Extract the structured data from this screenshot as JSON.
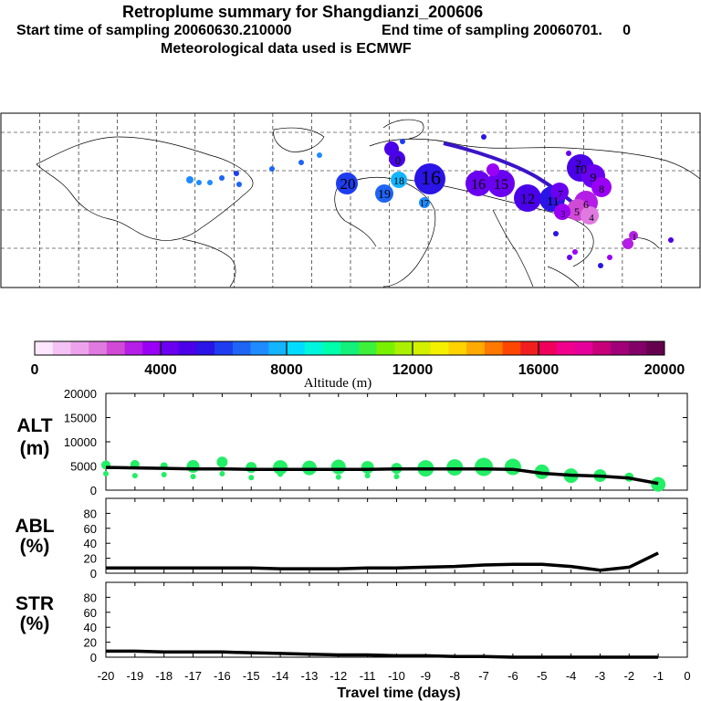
{
  "header": {
    "title": "Retroplume summary for Shangdianzi_200606",
    "start": "Start time of sampling 20060630.210000",
    "end": "End time of sampling 20060701.     0",
    "met": "Meteorological data used is ECMWF"
  },
  "colors": {
    "scale": [
      "#ffe6ff",
      "#f5c2f5",
      "#eca3ec",
      "#e07ae0",
      "#d04ad6",
      "#b41ee6",
      "#9a00f5",
      "#6a00f0",
      "#4a00e8",
      "#2a14e6",
      "#1e3cf0",
      "#1e64f5",
      "#1e8cff",
      "#14b4ff",
      "#00dcff",
      "#00f5dc",
      "#00ffaa",
      "#14f07a",
      "#3cf03c",
      "#78f000",
      "#aaf000",
      "#d2f000",
      "#f5f000",
      "#ffd200",
      "#ffaa00",
      "#ff7800",
      "#ff4600",
      "#f01e1e",
      "#f0005a",
      "#f0008c",
      "#e6009a",
      "#c8007a",
      "#a00078",
      "#820068",
      "#64004e"
    ],
    "green_marker": "#22ee66",
    "line": "#000000"
  },
  "map": {
    "labels": [
      {
        "text": "20"
      },
      {
        "text": "19"
      },
      {
        "text": "18"
      },
      {
        "text": "17"
      },
      {
        "text": "16"
      },
      {
        "text": "16"
      },
      {
        "text": "15"
      },
      {
        "text": "12"
      },
      {
        "text": "11"
      },
      {
        "text": "10"
      },
      {
        "text": "9"
      },
      {
        "text": "8"
      },
      {
        "text": "7"
      },
      {
        "text": "6"
      },
      {
        "text": "5"
      },
      {
        "text": "4"
      },
      {
        "text": "3"
      },
      {
        "text": "2"
      },
      {
        "text": "1"
      },
      {
        "text": "0"
      }
    ]
  },
  "colorbar": {
    "ticks": [
      "0",
      "4000",
      "8000",
      "12000",
      "16000",
      "20000"
    ],
    "label": "Altitude (m)"
  },
  "chart_data": [
    {
      "type": "line",
      "panel": "ALT",
      "ylabel": "ALT",
      "yunit": "(m)",
      "ylim": [
        0,
        20000
      ],
      "yticks": [
        "0",
        "5000",
        "10000",
        "15000",
        "20000"
      ],
      "x": [
        -20,
        -19,
        -18,
        -17,
        -16,
        -15,
        -14,
        -13,
        -12,
        -11,
        -10,
        -9,
        -8,
        -7,
        -6,
        -5,
        -4,
        -3,
        -2,
        -1
      ],
      "values": [
        4700,
        4600,
        4500,
        4400,
        4400,
        4300,
        4300,
        4300,
        4300,
        4300,
        4400,
        4400,
        4400,
        4400,
        4300,
        3500,
        3100,
        2900,
        2500,
        1400
      ],
      "marker_spread": [
        {
          "x": -20,
          "y": [
            5200,
            3400
          ],
          "size": [
            5,
            3
          ]
        },
        {
          "x": -19,
          "y": [
            5300,
            3000
          ],
          "size": [
            5,
            3
          ]
        },
        {
          "x": -18,
          "y": [
            5000,
            3200
          ],
          "size": [
            4,
            3
          ]
        },
        {
          "x": -17,
          "y": [
            4900,
            2800
          ],
          "size": [
            7,
            3
          ]
        },
        {
          "x": -16,
          "y": [
            5800,
            3400
          ],
          "size": [
            6,
            3
          ]
        },
        {
          "x": -15,
          "y": [
            4700,
            2600
          ],
          "size": [
            6,
            3
          ]
        },
        {
          "x": -14,
          "y": [
            4700,
            3300
          ],
          "size": [
            8,
            3
          ]
        },
        {
          "x": -13,
          "y": [
            4600
          ],
          "size": [
            8
          ]
        },
        {
          "x": -12,
          "y": [
            4800,
            2700
          ],
          "size": [
            8,
            3
          ]
        },
        {
          "x": -11,
          "y": [
            4700,
            3000
          ],
          "size": [
            7,
            3
          ]
        },
        {
          "x": -10,
          "y": [
            4500,
            2800
          ],
          "size": [
            6,
            3
          ]
        },
        {
          "x": -9,
          "y": [
            4500
          ],
          "size": [
            9
          ]
        },
        {
          "x": -8,
          "y": [
            4700
          ],
          "size": [
            9
          ]
        },
        {
          "x": -7,
          "y": [
            4800
          ],
          "size": [
            10
          ]
        },
        {
          "x": -6,
          "y": [
            4800
          ],
          "size": [
            9
          ]
        },
        {
          "x": -5,
          "y": [
            3800
          ],
          "size": [
            8
          ]
        },
        {
          "x": -4,
          "y": [
            3000
          ],
          "size": [
            8
          ]
        },
        {
          "x": -3,
          "y": [
            3000
          ],
          "size": [
            7
          ]
        },
        {
          "x": -2,
          "y": [
            2700
          ],
          "size": [
            5
          ]
        },
        {
          "x": -1,
          "y": [
            1200
          ],
          "size": [
            8
          ]
        }
      ]
    },
    {
      "type": "line",
      "panel": "ABL",
      "ylabel": "ABL",
      "yunit": "(%)",
      "ylim": [
        0,
        100
      ],
      "yticks": [
        "0",
        "20",
        "40",
        "60",
        "80"
      ],
      "x": [
        -20,
        -19,
        -18,
        -17,
        -16,
        -15,
        -14,
        -13,
        -12,
        -11,
        -10,
        -9,
        -8,
        -7,
        -6,
        -5,
        -4,
        -3,
        -2,
        -1
      ],
      "values": [
        7,
        7,
        7,
        7,
        7,
        7,
        6,
        6,
        6,
        7,
        7,
        8,
        9,
        11,
        12,
        12,
        9,
        4,
        8,
        27
      ]
    },
    {
      "type": "line",
      "panel": "STR",
      "ylabel": "STR",
      "yunit": "(%)",
      "ylim": [
        0,
        100
      ],
      "yticks": [
        "0",
        "20",
        "40",
        "60",
        "80"
      ],
      "x": [
        -20,
        -19,
        -18,
        -17,
        -16,
        -15,
        -14,
        -13,
        -12,
        -11,
        -10,
        -9,
        -8,
        -7,
        -6,
        -5,
        -4,
        -3,
        -2,
        -1
      ],
      "values": [
        8,
        8,
        7,
        7,
        7,
        6,
        5,
        4,
        3,
        3,
        2,
        2,
        1,
        1,
        0,
        0,
        0,
        0,
        0,
        0
      ]
    }
  ],
  "xaxis": {
    "ticks": [
      "-20",
      "-19",
      "-18",
      "-17",
      "-16",
      "-15",
      "-14",
      "-13",
      "-12",
      "-11",
      "-10",
      "-9",
      "-8",
      "-7",
      "-6",
      "-5",
      "-4",
      "-3",
      "-2",
      "-1",
      "0"
    ],
    "label": "Travel time (days)"
  }
}
